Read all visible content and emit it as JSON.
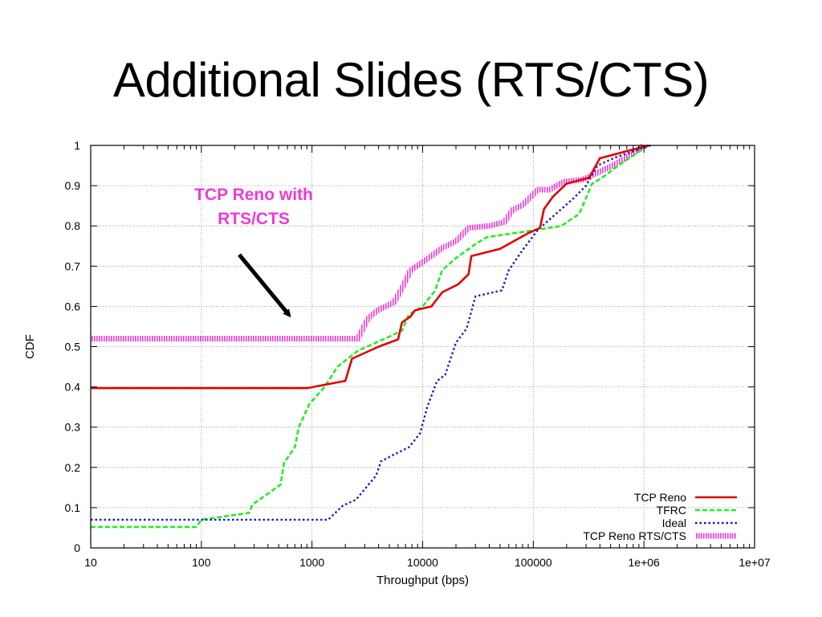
{
  "slide": {
    "title": "Additional Slides (RTS/CTS)"
  },
  "annotation": {
    "line1": "TCP Reno with",
    "line2": "RTS/CTS",
    "color": "#ee3ad6"
  },
  "chart_data": {
    "type": "line",
    "xlabel": "Throughput (bps)",
    "ylabel": "CDF",
    "xscale": "log",
    "xlim": [
      10,
      10000000
    ],
    "ylim": [
      0,
      1
    ],
    "xticks": [
      10,
      100,
      1000,
      10000,
      100000,
      1000000,
      10000000
    ],
    "xtick_labels": [
      "10",
      "100",
      "1000",
      "10000",
      "100000",
      "1e+06",
      "1e+07"
    ],
    "yticks": [
      0,
      0.1,
      0.2,
      0.3,
      0.4,
      0.5,
      0.6,
      0.7,
      0.8,
      0.9,
      1
    ],
    "ytick_labels": [
      "0",
      "0.1",
      "0.2",
      "0.3",
      "0.4",
      "0.5",
      "0.6",
      "0.7",
      "0.8",
      "0.9",
      "1"
    ],
    "grid": true,
    "legend_position": "bottom-right",
    "series": [
      {
        "name": "TCP Reno",
        "color": "#e00000",
        "style": "solid",
        "points": [
          [
            10,
            0.397
          ],
          [
            900,
            0.397
          ],
          [
            1400,
            0.407
          ],
          [
            2000,
            0.415
          ],
          [
            2300,
            0.47
          ],
          [
            4000,
            0.5
          ],
          [
            6000,
            0.518
          ],
          [
            6500,
            0.56
          ],
          [
            7800,
            0.575
          ],
          [
            8500,
            0.59
          ],
          [
            12000,
            0.6
          ],
          [
            15000,
            0.635
          ],
          [
            21000,
            0.655
          ],
          [
            26000,
            0.68
          ],
          [
            27500,
            0.725
          ],
          [
            50000,
            0.743
          ],
          [
            90000,
            0.782
          ],
          [
            115000,
            0.795
          ],
          [
            125000,
            0.842
          ],
          [
            150000,
            0.872
          ],
          [
            200000,
            0.905
          ],
          [
            320000,
            0.92
          ],
          [
            400000,
            0.968
          ],
          [
            1100000,
            1.0
          ]
        ]
      },
      {
        "name": "TFRC",
        "color": "#22ee22",
        "style": "dashed",
        "points": [
          [
            10,
            0.052
          ],
          [
            90,
            0.052
          ],
          [
            100,
            0.07
          ],
          [
            270,
            0.087
          ],
          [
            290,
            0.108
          ],
          [
            520,
            0.157
          ],
          [
            560,
            0.212
          ],
          [
            700,
            0.25
          ],
          [
            760,
            0.3
          ],
          [
            950,
            0.358
          ],
          [
            1300,
            0.4
          ],
          [
            1700,
            0.45
          ],
          [
            2600,
            0.49
          ],
          [
            5000,
            0.525
          ],
          [
            6500,
            0.54
          ],
          [
            7500,
            0.58
          ],
          [
            10000,
            0.6
          ],
          [
            13000,
            0.64
          ],
          [
            15000,
            0.69
          ],
          [
            20000,
            0.72
          ],
          [
            30000,
            0.755
          ],
          [
            38000,
            0.772
          ],
          [
            90000,
            0.787
          ],
          [
            180000,
            0.8
          ],
          [
            260000,
            0.83
          ],
          [
            290000,
            0.86
          ],
          [
            340000,
            0.905
          ],
          [
            420000,
            0.92
          ],
          [
            600000,
            0.952
          ],
          [
            1100000,
            1.0
          ]
        ]
      },
      {
        "name": "Ideal",
        "color": "#1a1acc",
        "style": "dotted",
        "points": [
          [
            10,
            0.07
          ],
          [
            1400,
            0.07
          ],
          [
            1900,
            0.105
          ],
          [
            2500,
            0.12
          ],
          [
            3800,
            0.18
          ],
          [
            4200,
            0.215
          ],
          [
            5500,
            0.232
          ],
          [
            7500,
            0.25
          ],
          [
            9500,
            0.285
          ],
          [
            11000,
            0.35
          ],
          [
            13500,
            0.415
          ],
          [
            16000,
            0.43
          ],
          [
            20000,
            0.51
          ],
          [
            25000,
            0.545
          ],
          [
            30000,
            0.625
          ],
          [
            52000,
            0.64
          ],
          [
            60000,
            0.69
          ],
          [
            80000,
            0.74
          ],
          [
            110000,
            0.79
          ],
          [
            160000,
            0.83
          ],
          [
            230000,
            0.868
          ],
          [
            300000,
            0.9
          ],
          [
            380000,
            0.95
          ],
          [
            550000,
            0.97
          ],
          [
            800000,
            0.985
          ],
          [
            1150000,
            1.0
          ]
        ]
      },
      {
        "name": "TCP Reno RTS/CTS",
        "color": "#ee3ad6",
        "style": "hatched",
        "points": [
          [
            10,
            0.52
          ],
          [
            2600,
            0.52
          ],
          [
            3200,
            0.57
          ],
          [
            3900,
            0.59
          ],
          [
            5500,
            0.61
          ],
          [
            6500,
            0.645
          ],
          [
            7800,
            0.69
          ],
          [
            10000,
            0.71
          ],
          [
            15000,
            0.745
          ],
          [
            20000,
            0.762
          ],
          [
            26000,
            0.795
          ],
          [
            40000,
            0.8
          ],
          [
            55000,
            0.81
          ],
          [
            65000,
            0.84
          ],
          [
            80000,
            0.852
          ],
          [
            110000,
            0.89
          ],
          [
            140000,
            0.89
          ],
          [
            190000,
            0.91
          ],
          [
            280000,
            0.915
          ],
          [
            400000,
            0.935
          ],
          [
            520000,
            0.95
          ],
          [
            800000,
            0.98
          ],
          [
            1000000,
            1.0
          ]
        ]
      }
    ]
  }
}
